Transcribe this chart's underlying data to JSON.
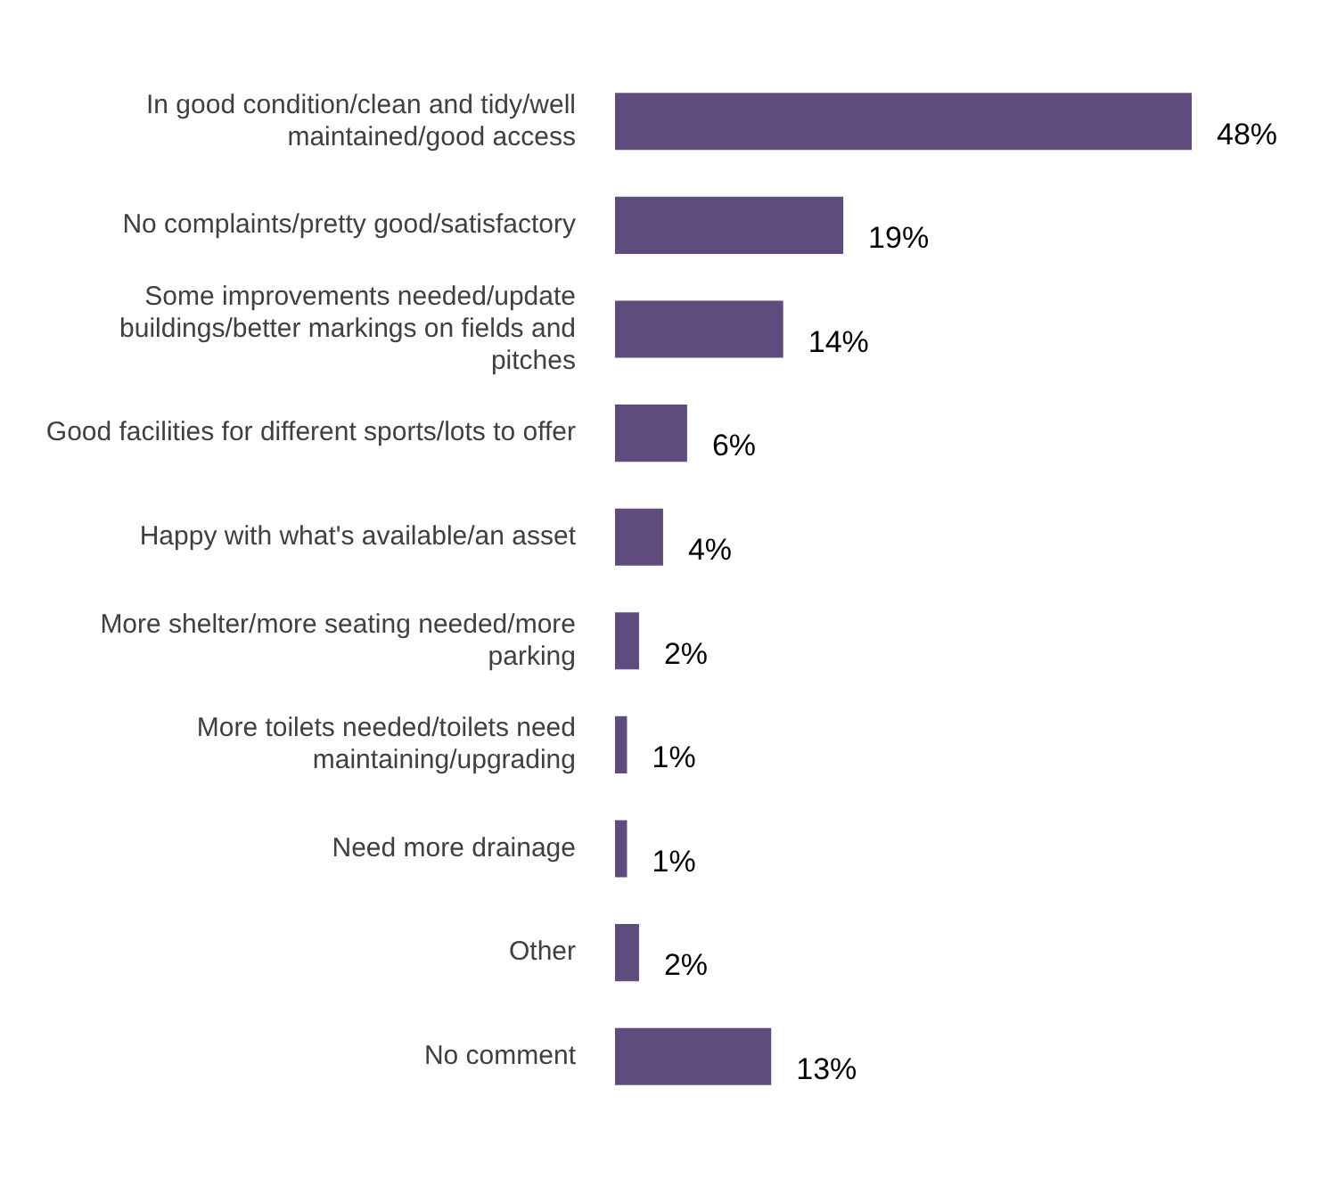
{
  "chart_data": {
    "type": "bar",
    "orientation": "horizontal",
    "categories": [
      "In good condition/clean and tidy/well maintained/good access",
      "No complaints/pretty good/satisfactory",
      "Some improvements needed/update buildings/better markings on fields and pitches",
      "Good facilities for different sports/lots to offer",
      "Happy with what's available/an asset",
      "More shelter/more seating needed/more parking",
      "More toilets needed/toilets need maintaining/upgrading",
      "Need more drainage",
      "Other",
      "No comment"
    ],
    "values": [
      48,
      19,
      14,
      6,
      4,
      2,
      1,
      1,
      2,
      13
    ],
    "value_labels": [
      "48%",
      "19%",
      "14%",
      "6%",
      "4%",
      "2%",
      "1%",
      "1%",
      "2%",
      "13%"
    ],
    "color": "#5f4b7d",
    "grid": false,
    "legend": false
  }
}
